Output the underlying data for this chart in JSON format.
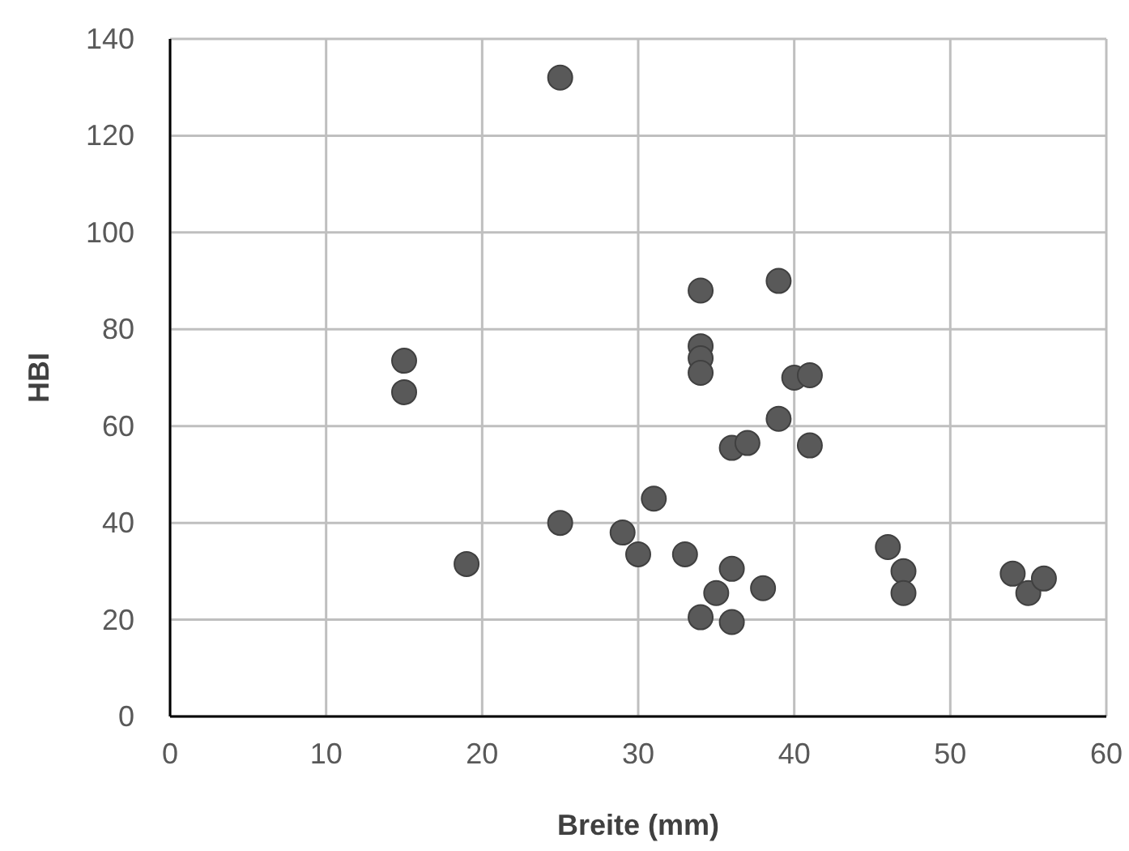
{
  "chart_data": {
    "type": "scatter",
    "xlabel": "Breite (mm)",
    "ylabel": "HBI",
    "xlim": [
      0,
      60
    ],
    "ylim": [
      0,
      140
    ],
    "xticks": [
      0,
      10,
      20,
      30,
      40,
      50,
      60
    ],
    "yticks": [
      0,
      20,
      40,
      60,
      80,
      100,
      120,
      140
    ],
    "grid": true,
    "marker": "circle",
    "series": [
      {
        "color": "#595959",
        "x": [
          25,
          15,
          15,
          19,
          25,
          29,
          30,
          31,
          33,
          34,
          34,
          34,
          34,
          34,
          35,
          36,
          36,
          36,
          37,
          38,
          39,
          39,
          40,
          41,
          41,
          46,
          47,
          47,
          54,
          55,
          56
        ],
        "values": [
          132,
          73.5,
          67,
          31.5,
          40,
          38,
          33.5,
          45,
          33.5,
          88,
          76.5,
          74,
          71,
          20.5,
          25.5,
          55.5,
          30.5,
          19.5,
          56.5,
          26.5,
          90,
          61.5,
          70,
          70.5,
          56,
          35,
          30,
          25.5,
          29.5,
          25.5,
          28.5
        ]
      }
    ]
  }
}
